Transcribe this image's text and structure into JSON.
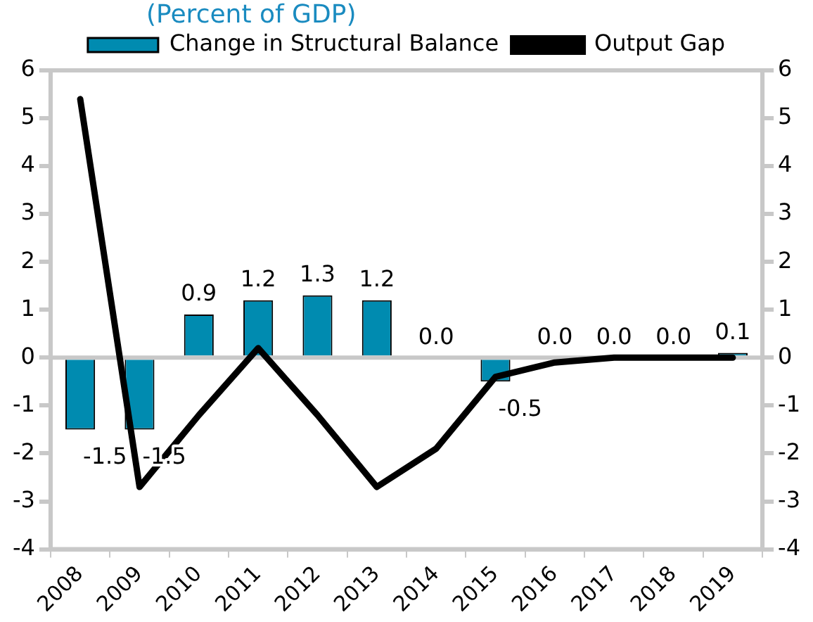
{
  "chart_data": {
    "type": "bar",
    "title": "(Percent of GDP)",
    "categories": [
      "2008",
      "2009",
      "2010",
      "2011",
      "2012",
      "2013",
      "2014",
      "2015",
      "2016",
      "2017",
      "2018",
      "2019"
    ],
    "series": [
      {
        "name": "Change in Structural Balance",
        "color": "#008bb0",
        "values": [
          -1.5,
          -1.5,
          0.9,
          1.2,
          1.3,
          1.2,
          0.0,
          -0.5,
          0.0,
          0.0,
          0.0,
          0.1
        ],
        "value_labels": [
          "-1.5",
          "-1.5",
          "0.9",
          "1.2",
          "1.3",
          "1.2",
          "0.0",
          "-0.5",
          "0.0",
          "0.0",
          "0.0",
          "0.1"
        ]
      },
      {
        "name": "Output Gap",
        "type": "line",
        "color": "#000000",
        "values": [
          5.4,
          -2.7,
          -1.2,
          0.2,
          -1.2,
          -2.7,
          -1.9,
          -0.4,
          -0.1,
          0.0,
          0.0,
          0.0
        ]
      }
    ],
    "ylim": [
      -4,
      6
    ],
    "yticks": [
      -4,
      -3,
      -2,
      -1,
      0,
      1,
      2,
      3,
      4,
      5,
      6
    ],
    "y2lim": [
      -4,
      6
    ],
    "y2ticks": [
      -4,
      -3,
      -2,
      -1,
      0,
      1,
      2,
      3,
      4,
      5,
      6
    ],
    "legend": "top",
    "marker": "none"
  }
}
